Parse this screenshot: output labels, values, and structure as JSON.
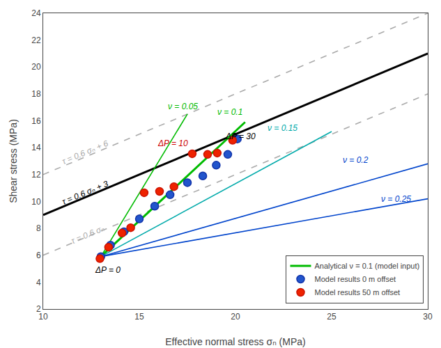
{
  "chart_data": {
    "type": "scatter",
    "xlabel": "Effective normal stress σₙ (MPa)",
    "ylabel": "Shear stress (MPa)",
    "xlim": [
      10,
      30
    ],
    "xticks": [
      10,
      15,
      20,
      25,
      30
    ],
    "ylim": [
      2,
      24
    ],
    "yticks": [
      2,
      4,
      6,
      8,
      10,
      12,
      14,
      16,
      18,
      20,
      22,
      24
    ],
    "grid": false,
    "legend": "lower right",
    "series": [
      {
        "type": "line",
        "color": "#aaaaaa",
        "line_style": "dashed",
        "x": [
          10,
          30
        ],
        "values": [
          6,
          18
        ]
      },
      {
        "type": "line",
        "color": "#000000",
        "line_style": "solid",
        "x": [
          10,
          30
        ],
        "values": [
          9,
          21
        ]
      },
      {
        "type": "line",
        "color": "#aaaaaa",
        "line_style": "dashed",
        "x": [
          10,
          30
        ],
        "values": [
          12,
          24
        ]
      },
      {
        "type": "line",
        "color": "#00bb00",
        "line_style": "solid",
        "x": [
          13.0,
          17.5
        ],
        "values": [
          5.9,
          16.5
        ]
      },
      {
        "name": "Analytical ν = 0.1 (model input)",
        "type": "line",
        "color": "#00bb00",
        "line_style": "solid",
        "x": [
          13.0,
          20.5
        ],
        "values": [
          5.9,
          15.9
        ]
      },
      {
        "type": "line",
        "color": "#00aaaa",
        "line_style": "solid",
        "x": [
          13.0,
          25.0
        ],
        "values": [
          5.9,
          15.2
        ]
      },
      {
        "type": "line",
        "color": "#0044cc",
        "line_style": "solid",
        "x": [
          13.0,
          30.0
        ],
        "values": [
          5.9,
          12.8
        ]
      },
      {
        "type": "line",
        "color": "#0044cc",
        "line_style": "solid",
        "x": [
          13.0,
          30.0
        ],
        "values": [
          5.9,
          10.2
        ]
      },
      {
        "name": "Model results 0 m offset",
        "type": "scatter",
        "marker": "circle",
        "color": "#2255cc",
        "edge_color": "#1133aa",
        "x": [
          13.0,
          13.5,
          14.2,
          15.0,
          15.8,
          16.6,
          17.5,
          18.3,
          19.0,
          19.6,
          20.1
        ],
        "values": [
          5.9,
          6.75,
          7.75,
          8.7,
          9.65,
          10.5,
          11.4,
          11.9,
          12.7,
          13.5,
          14.65
        ]
      },
      {
        "name": "Model results 50 m offset",
        "type": "scatter",
        "marker": "circle",
        "color": "#ee2200",
        "edge_color": "#cc1100",
        "x": [
          12.95,
          13.4,
          14.1,
          14.55,
          15.25,
          16.05,
          16.8,
          17.75,
          18.55,
          19.05,
          19.85
        ],
        "values": [
          5.75,
          6.6,
          7.65,
          8.05,
          10.65,
          10.75,
          11.1,
          13.55,
          13.5,
          13.6,
          14.55
        ]
      }
    ],
    "annotations": [
      {
        "text": "τ = 0.6 σₙ",
        "x": 11.3,
        "y": 6.55,
        "color": "#aaaaaa"
      },
      {
        "text": "τ = 0.6 σₙ + 3",
        "x": 10.8,
        "y": 9.45,
        "color": "#000000"
      },
      {
        "text": "τ = 0.6 σₙ + 6",
        "x": 10.8,
        "y": 12.45,
        "color": "#aaaaaa"
      },
      {
        "text": "ν = 0.05",
        "x": 16.4,
        "y": 16.6,
        "color": "#00bb00"
      },
      {
        "text": "ν = 0.1",
        "x": 19.0,
        "y": 16.2,
        "color": "#00bb00"
      },
      {
        "text": "ν = 0.15",
        "x": 21.6,
        "y": 15.0,
        "color": "#00aaaa"
      },
      {
        "text": "ν = 0.2",
        "x": 25.5,
        "y": 12.6,
        "color": "#0044cc"
      },
      {
        "text": "ν = 0.25",
        "x": 27.5,
        "y": 9.7,
        "color": "#0044cc"
      },
      {
        "text": "ΔP = 0",
        "x": 12.6,
        "y": 5.35,
        "color": "#000000"
      },
      {
        "text": "ΔP = 10",
        "x": 17.6,
        "y": 13.85,
        "color": "#cc0000"
      },
      {
        "text": "ΔP = 30",
        "x": 19.4,
        "y": 14.35,
        "color": "#000000"
      }
    ]
  }
}
